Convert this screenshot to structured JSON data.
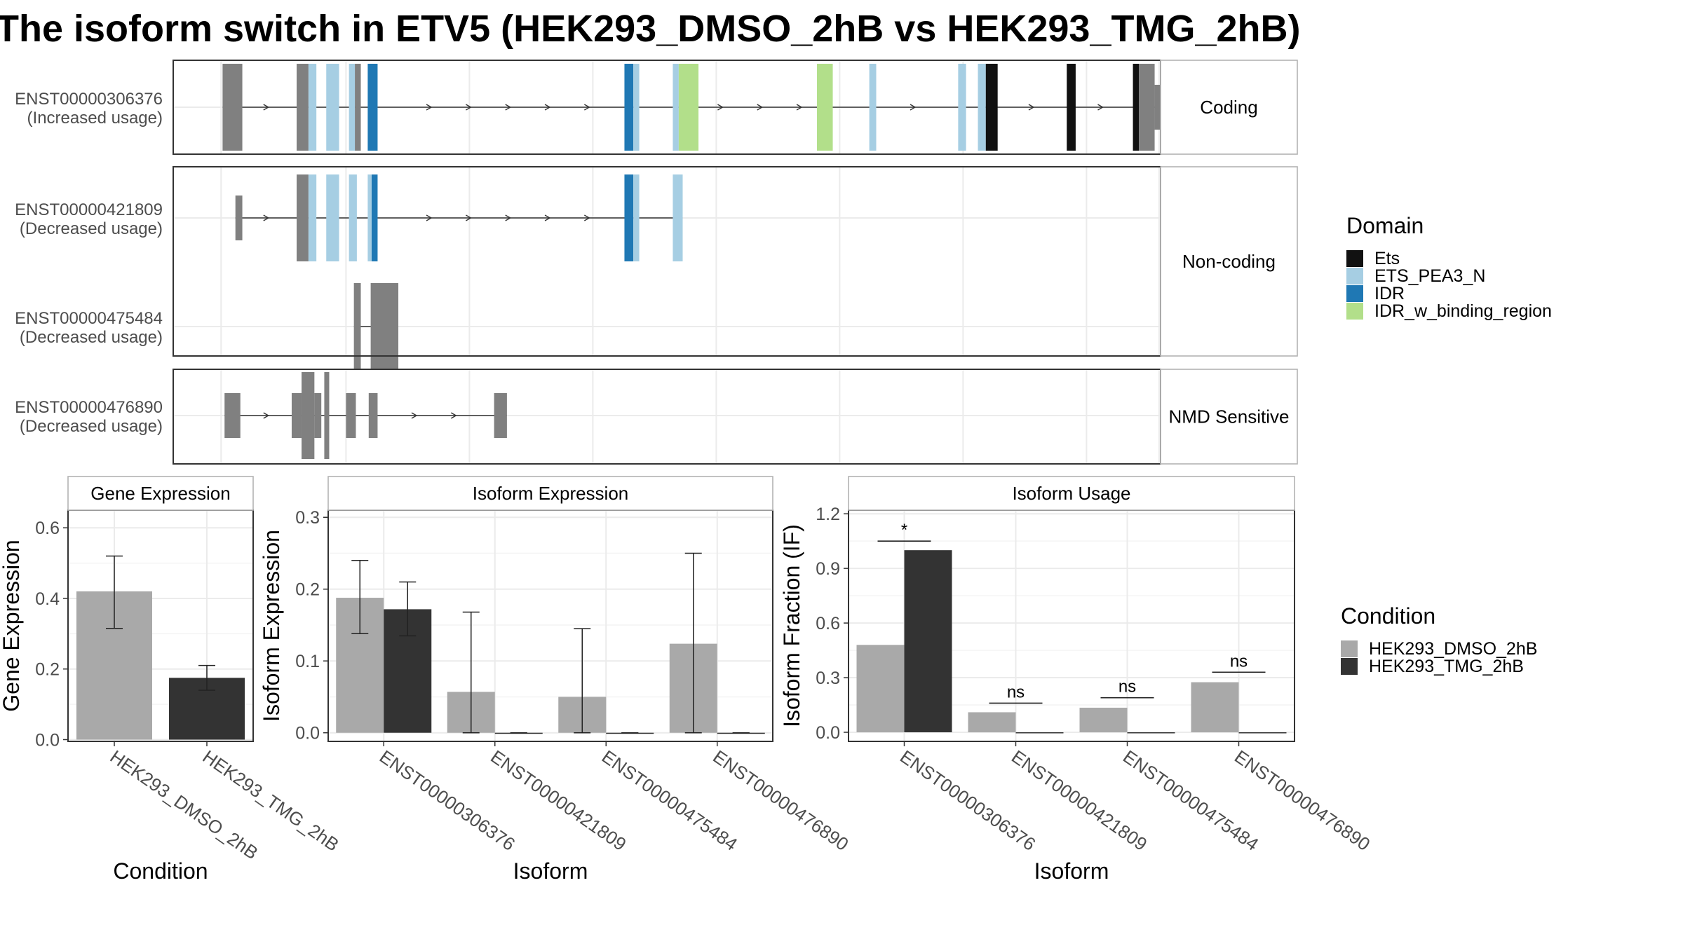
{
  "title": "The isoform switch in ETV5 (HEK293_DMSO_2hB vs HEK293_TMG_2hB)",
  "colors": {
    "intron": "#333333",
    "exon": "#808080",
    "dmso": "#a9a9a9",
    "tmg": "#333333",
    "ets": "#111111",
    "ets_pea3": "#a6cee3",
    "idr": "#1f78b4",
    "idr_bind": "#b2df8a",
    "grid": "#ebebeb",
    "strip": "#ffffff"
  },
  "structure": {
    "panels": [
      {
        "strip": "Coding",
        "isoforms": [
          {
            "id": "ENST00000306376",
            "usage": "(Increased usage)",
            "exons": [
              [
                0.05,
                0.07,
                "exon",
                "full"
              ],
              [
                0.125,
                0.137,
                "exon",
                "full"
              ],
              [
                0.137,
                0.145,
                "ets_pea3",
                "full"
              ],
              [
                0.155,
                0.168,
                "ets_pea3",
                "full"
              ],
              [
                0.178,
                0.184,
                "ets_pea3",
                "full"
              ],
              [
                0.184,
                0.19,
                "exon",
                "full"
              ],
              [
                0.197,
                0.207,
                "idr",
                "full"
              ],
              [
                0.457,
                0.466,
                "idr",
                "full"
              ],
              [
                0.466,
                0.472,
                "ets_pea3",
                "full"
              ],
              [
                0.506,
                0.512,
                "ets_pea3",
                "full"
              ],
              [
                0.512,
                0.532,
                "idr_bind",
                "full"
              ],
              [
                0.652,
                0.668,
                "idr_bind",
                "full"
              ],
              [
                0.705,
                0.712,
                "ets_pea3",
                "full"
              ],
              [
                0.795,
                0.803,
                "ets_pea3",
                "full"
              ],
              [
                0.815,
                0.823,
                "ets_pea3",
                "full"
              ],
              [
                0.823,
                0.835,
                "ets",
                "full"
              ],
              [
                0.905,
                0.914,
                "ets",
                "full"
              ],
              [
                0.972,
                0.978,
                "ets",
                "full"
              ],
              [
                0.978,
                0.994,
                "exon",
                "full"
              ],
              [
                0.994,
                1.04,
                "exon",
                "half"
              ]
            ],
            "arrows": [
              0.095,
              0.26,
              0.3,
              0.34,
              0.38,
              0.42,
              0.555,
              0.595,
              0.635,
              0.75,
              0.87,
              0.94
            ]
          }
        ]
      },
      {
        "strip": "Non-coding",
        "isoforms": [
          {
            "id": "ENST00000421809",
            "usage": "(Decreased usage)",
            "exons": [
              [
                0.063,
                0.07,
                "exon",
                "half"
              ],
              [
                0.125,
                0.137,
                "exon",
                "full"
              ],
              [
                0.137,
                0.145,
                "ets_pea3",
                "full"
              ],
              [
                0.155,
                0.168,
                "ets_pea3",
                "full"
              ],
              [
                0.178,
                0.186,
                "ets_pea3",
                "full"
              ],
              [
                0.197,
                0.201,
                "ets_pea3",
                "full"
              ],
              [
                0.201,
                0.207,
                "idr",
                "full"
              ],
              [
                0.457,
                0.466,
                "idr",
                "full"
              ],
              [
                0.466,
                0.472,
                "ets_pea3",
                "full"
              ],
              [
                0.506,
                0.516,
                "ets_pea3",
                "full"
              ]
            ],
            "arrows": [
              0.095,
              0.26,
              0.3,
              0.34,
              0.38,
              0.42
            ]
          },
          {
            "id": "ENST00000475484",
            "usage": "(Decreased usage)",
            "exons": [
              [
                0.183,
                0.19,
                "exon",
                "full"
              ],
              [
                0.2,
                0.228,
                "exon",
                "full"
              ]
            ],
            "arrows": []
          }
        ]
      },
      {
        "strip": "NMD Sensitive",
        "isoforms": [
          {
            "id": "ENST00000476890",
            "usage": "(Decreased usage)",
            "exons": [
              [
                0.052,
                0.068,
                "exon",
                "half"
              ],
              [
                0.12,
                0.13,
                "exon",
                "half"
              ],
              [
                0.13,
                0.143,
                "exon",
                "full"
              ],
              [
                0.143,
                0.15,
                "exon",
                "half"
              ],
              [
                0.153,
                0.158,
                "exon",
                "full"
              ],
              [
                0.175,
                0.185,
                "exon",
                "half"
              ],
              [
                0.198,
                0.207,
                "exon",
                "half"
              ],
              [
                0.325,
                0.338,
                "exon",
                "half"
              ]
            ],
            "arrows": [
              0.095,
              0.245,
              0.285
            ]
          }
        ]
      }
    ]
  },
  "domain_legend": {
    "title": "Domain",
    "items": [
      {
        "label": "Ets",
        "color": "ets"
      },
      {
        "label": "ETS_PEA3_N",
        "color": "ets_pea3"
      },
      {
        "label": "IDR",
        "color": "idr"
      },
      {
        "label": "IDR_w_binding_region",
        "color": "idr_bind"
      }
    ]
  },
  "condition_legend": {
    "title": "Condition",
    "items": [
      {
        "label": "HEK293_DMSO_2hB",
        "color": "dmso"
      },
      {
        "label": "HEK293_TMG_2hB",
        "color": "tmg"
      }
    ]
  },
  "chart_data": [
    {
      "type": "bar",
      "title": "Gene Expression",
      "xlabel": "Condition",
      "ylabel": "Gene Expression",
      "ylim": [
        -0.005,
        0.65
      ],
      "yticks": [
        "0.0",
        "0.2",
        "0.4",
        "0.6"
      ],
      "categories": [
        "HEK293_DMSO_2hB",
        "HEK293_TMG_2hB"
      ],
      "grouped": false,
      "series": [
        {
          "values": [
            0.42,
            0.175
          ],
          "colors": [
            "dmso",
            "tmg"
          ],
          "err_low": [
            0.315,
            0.14
          ],
          "err_high": [
            0.52,
            0.21
          ]
        }
      ]
    },
    {
      "type": "bar",
      "title": "Isoform Expression",
      "xlabel": "Isoform",
      "ylabel": "Isoform Expression",
      "ylim": [
        -0.012,
        0.31
      ],
      "yticks": [
        "0.0",
        "0.1",
        "0.2",
        "0.3"
      ],
      "categories": [
        "ENST00000306376",
        "ENST00000421809",
        "ENST00000475484",
        "ENST00000476890"
      ],
      "grouped": true,
      "series": [
        {
          "name": "HEK293_DMSO_2hB",
          "color": "dmso",
          "values": [
            0.188,
            0.057,
            0.05,
            0.124
          ],
          "err_low": [
            0.138,
            0.0,
            0.0,
            0.0
          ],
          "err_high": [
            0.24,
            0.168,
            0.145,
            0.25
          ]
        },
        {
          "name": "HEK293_TMG_2hB",
          "color": "tmg",
          "values": [
            0.172,
            0.0,
            0.0,
            0.0
          ],
          "err_low": [
            0.135,
            0.0,
            0.0,
            0.0
          ],
          "err_high": [
            0.21,
            0.0,
            0.0,
            0.0
          ]
        }
      ]
    },
    {
      "type": "bar",
      "title": "Isoform Usage",
      "xlabel": "Isoform",
      "ylabel": "Isoform Fraction (IF)",
      "ylim": [
        -0.05,
        1.22
      ],
      "yticks": [
        "0.0",
        "0.3",
        "0.6",
        "0.9",
        "1.2"
      ],
      "categories": [
        "ENST00000306376",
        "ENST00000421809",
        "ENST00000475484",
        "ENST00000476890"
      ],
      "grouped": true,
      "series": [
        {
          "name": "HEK293_DMSO_2hB",
          "color": "dmso",
          "values": [
            0.48,
            0.11,
            0.135,
            0.275
          ]
        },
        {
          "name": "HEK293_TMG_2hB",
          "color": "tmg",
          "values": [
            1.0,
            0.0,
            0.0,
            0.0
          ]
        }
      ],
      "significance": [
        {
          "label": "*",
          "y": 1.05
        },
        {
          "label": "ns",
          "y": 0.16
        },
        {
          "label": "ns",
          "y": 0.19
        },
        {
          "label": "ns",
          "y": 0.33
        }
      ]
    }
  ]
}
